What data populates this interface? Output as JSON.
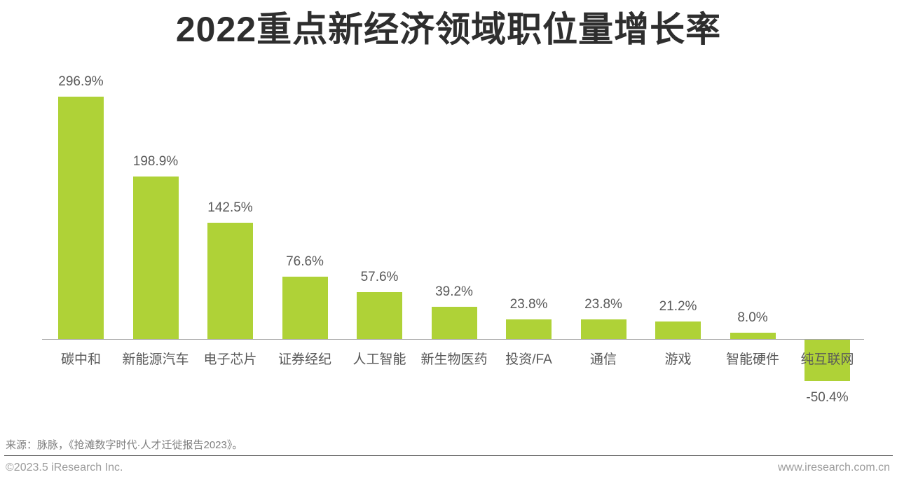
{
  "title": "2022重点新经济领域职位量增长率",
  "chart_data": {
    "type": "bar",
    "title": "2022重点新经济领域职位量增长率",
    "categories": [
      "碳中和",
      "新能源汽车",
      "电子芯片",
      "证券经纪",
      "人工智能",
      "新生物医药",
      "投资/FA",
      "通信",
      "游戏",
      "智能硬件",
      "纯互联网"
    ],
    "values": [
      296.9,
      198.9,
      142.5,
      76.6,
      57.6,
      39.2,
      23.8,
      23.8,
      21.2,
      8.0,
      -50.4
    ],
    "value_labels": [
      "296.9%",
      "198.9%",
      "142.5%",
      "76.6%",
      "57.6%",
      "39.2%",
      "23.8%",
      "23.8%",
      "21.2%",
      "8.0%",
      "-50.4%"
    ],
    "xlabel": "",
    "ylabel": "",
    "ylim": [
      -60,
      310
    ],
    "grid": false,
    "legend": false,
    "bar_color": "#AFD237",
    "axis_color": "#A6A6A6",
    "label_color": "#595959"
  },
  "source_note": "来源：脉脉，《抢滩数字时代·人才迁徙报告2023》。",
  "footer": {
    "left": "©2023.5 iResearch Inc.",
    "right": "www.iresearch.com.cn"
  }
}
